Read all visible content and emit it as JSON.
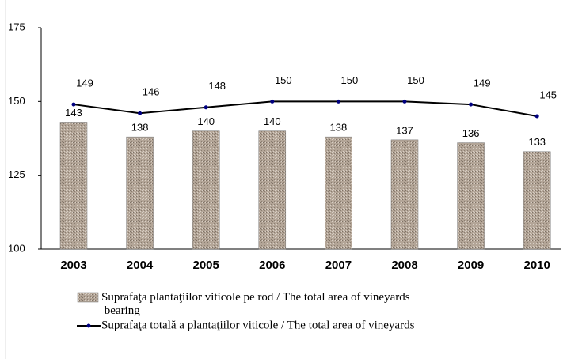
{
  "chart_data": {
    "type": "bar",
    "categories": [
      "2003",
      "2004",
      "2005",
      "2006",
      "2007",
      "2008",
      "2009",
      "2010"
    ],
    "series": [
      {
        "name": "Suprafaţa plantaţiilor viticole pe rod / The total area of vineyards bearing",
        "type": "bar",
        "color": "#b3a597",
        "values": [
          143,
          138,
          140,
          140,
          138,
          137,
          136,
          133
        ]
      },
      {
        "name": "Suprafaţa totală a plantaţiilor viticole / The total area of vineyards",
        "type": "line",
        "color": "#000000",
        "values": [
          149,
          146,
          148,
          150,
          150,
          150,
          149,
          145
        ]
      }
    ],
    "ylim": [
      100,
      175
    ],
    "yticks": [
      100,
      125,
      150,
      175
    ],
    "grid": false,
    "legend": "bottom"
  }
}
